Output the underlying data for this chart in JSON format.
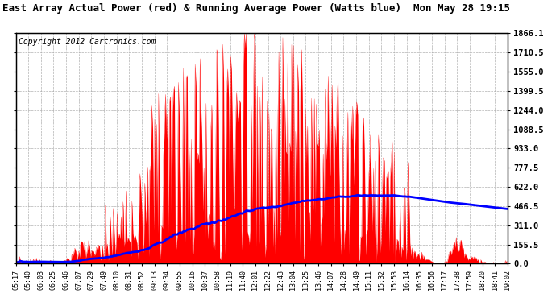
{
  "title": "East Array Actual Power (red) & Running Average Power (Watts blue)  Mon May 28 19:15",
  "copyright": "Copyright 2012 Cartronics.com",
  "yticks": [
    0.0,
    155.5,
    311.0,
    466.5,
    622.0,
    777.5,
    933.0,
    1088.5,
    1244.0,
    1399.5,
    1555.0,
    1710.5,
    1866.1
  ],
  "ymax": 1866.1,
  "ymin": 0.0,
  "x_labels": [
    "05:17",
    "05:40",
    "06:03",
    "06:25",
    "06:46",
    "07:07",
    "07:29",
    "07:49",
    "08:10",
    "08:31",
    "08:52",
    "09:13",
    "09:34",
    "09:55",
    "10:16",
    "10:37",
    "10:58",
    "11:19",
    "11:40",
    "12:01",
    "12:22",
    "12:43",
    "13:04",
    "13:25",
    "13:46",
    "14:07",
    "14:28",
    "14:49",
    "15:11",
    "15:32",
    "15:53",
    "16:14",
    "16:35",
    "16:56",
    "17:17",
    "17:38",
    "17:59",
    "18:20",
    "18:41",
    "19:02"
  ],
  "background_color": "#ffffff",
  "plot_bg_color": "#ffffff",
  "grid_color": "#aaaaaa",
  "fill_color": "#ff0000",
  "avg_line_color": "#0000ff",
  "title_color": "#000000",
  "title_fontsize": 9,
  "copyright_fontsize": 7
}
